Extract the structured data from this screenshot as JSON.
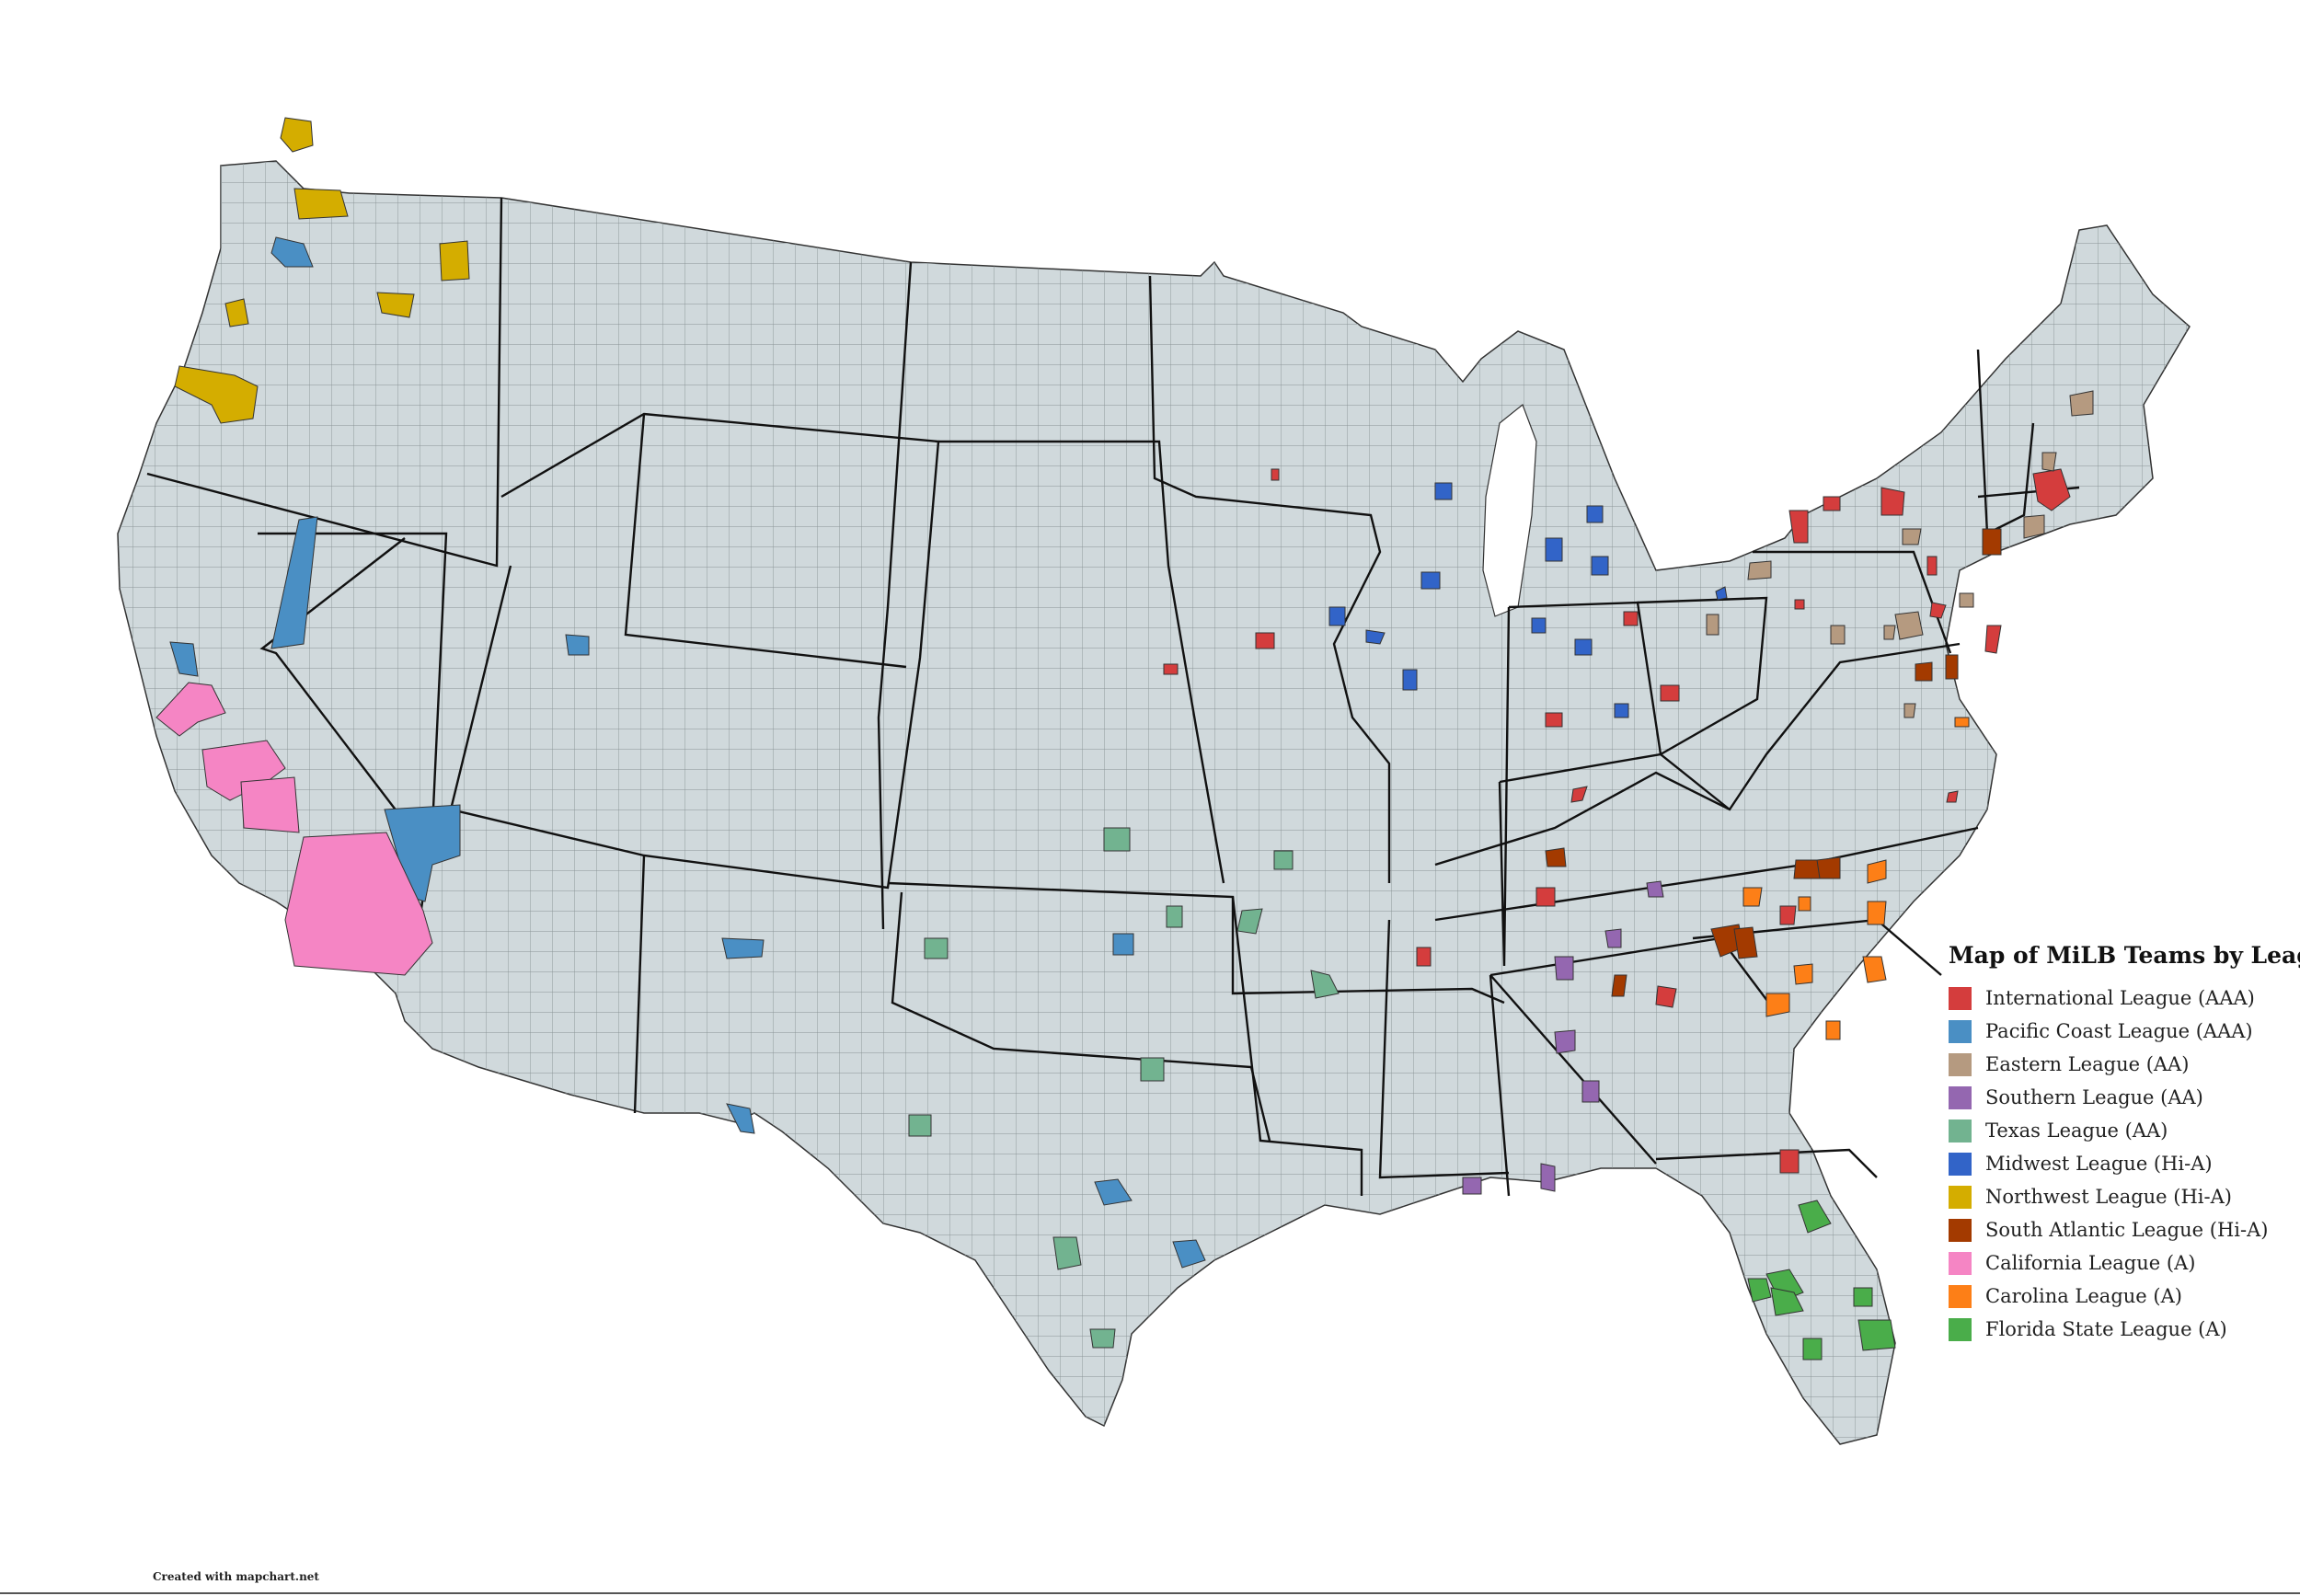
{
  "map": {
    "title": "Map of MiLB Teams by League",
    "credit": "Created with mapchart.net",
    "colors": {
      "land": "#d0d9dc",
      "state_border": "#111111",
      "county_border": "#8a9396"
    }
  },
  "legend": [
    {
      "label": "International League (AAA)",
      "color": "#d43d3d"
    },
    {
      "label": "Pacific Coast League (AAA)",
      "color": "#4a8fc4"
    },
    {
      "label": "Eastern League (AA)",
      "color": "#b59a80"
    },
    {
      "label": "Southern League (AA)",
      "color": "#9467b0"
    },
    {
      "label": "Texas League (AA)",
      "color": "#72b390"
    },
    {
      "label": "Midwest League (Hi-A)",
      "color": "#3264c8"
    },
    {
      "label": "Northwest League (Hi-A)",
      "color": "#d4ad00"
    },
    {
      "label": "South Atlantic League (Hi-A)",
      "color": "#a33a00"
    },
    {
      "label": "California League (A)",
      "color": "#f585c4"
    },
    {
      "label": "Carolina League (A)",
      "color": "#fd7f17"
    },
    {
      "label": "Florida State League (A)",
      "color": "#4aad4a"
    }
  ]
}
